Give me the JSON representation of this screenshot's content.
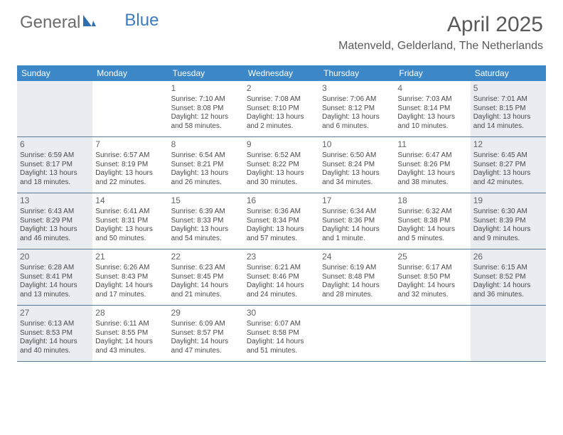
{
  "logo": {
    "part1": "General",
    "part2": "Blue"
  },
  "title": "April 2025",
  "location": "Matenveld, Gelderland, The Netherlands",
  "colors": {
    "header_bg": "#3b87c8",
    "header_text": "#ffffff",
    "shaded_bg": "#e9edf1",
    "border": "#5a7a95",
    "text": "#4a4a4a",
    "daynum": "#606468",
    "logo_gray": "#6b6b6b",
    "logo_blue": "#3b7bbf"
  },
  "dayNames": [
    "Sunday",
    "Monday",
    "Tuesday",
    "Wednesday",
    "Thursday",
    "Friday",
    "Saturday"
  ],
  "weeks": [
    [
      {
        "day": "",
        "sunrise": "",
        "sunset": "",
        "daylight": "",
        "shaded": true
      },
      {
        "day": "",
        "sunrise": "",
        "sunset": "",
        "daylight": "",
        "shaded": false
      },
      {
        "day": "1",
        "sunrise": "Sunrise: 7:10 AM",
        "sunset": "Sunset: 8:08 PM",
        "daylight": "Daylight: 12 hours and 58 minutes.",
        "shaded": false
      },
      {
        "day": "2",
        "sunrise": "Sunrise: 7:08 AM",
        "sunset": "Sunset: 8:10 PM",
        "daylight": "Daylight: 13 hours and 2 minutes.",
        "shaded": false
      },
      {
        "day": "3",
        "sunrise": "Sunrise: 7:06 AM",
        "sunset": "Sunset: 8:12 PM",
        "daylight": "Daylight: 13 hours and 6 minutes.",
        "shaded": false
      },
      {
        "day": "4",
        "sunrise": "Sunrise: 7:03 AM",
        "sunset": "Sunset: 8:14 PM",
        "daylight": "Daylight: 13 hours and 10 minutes.",
        "shaded": false
      },
      {
        "day": "5",
        "sunrise": "Sunrise: 7:01 AM",
        "sunset": "Sunset: 8:15 PM",
        "daylight": "Daylight: 13 hours and 14 minutes.",
        "shaded": true
      }
    ],
    [
      {
        "day": "6",
        "sunrise": "Sunrise: 6:59 AM",
        "sunset": "Sunset: 8:17 PM",
        "daylight": "Daylight: 13 hours and 18 minutes.",
        "shaded": true
      },
      {
        "day": "7",
        "sunrise": "Sunrise: 6:57 AM",
        "sunset": "Sunset: 8:19 PM",
        "daylight": "Daylight: 13 hours and 22 minutes.",
        "shaded": false
      },
      {
        "day": "8",
        "sunrise": "Sunrise: 6:54 AM",
        "sunset": "Sunset: 8:21 PM",
        "daylight": "Daylight: 13 hours and 26 minutes.",
        "shaded": false
      },
      {
        "day": "9",
        "sunrise": "Sunrise: 6:52 AM",
        "sunset": "Sunset: 8:22 PM",
        "daylight": "Daylight: 13 hours and 30 minutes.",
        "shaded": false
      },
      {
        "day": "10",
        "sunrise": "Sunrise: 6:50 AM",
        "sunset": "Sunset: 8:24 PM",
        "daylight": "Daylight: 13 hours and 34 minutes.",
        "shaded": false
      },
      {
        "day": "11",
        "sunrise": "Sunrise: 6:47 AM",
        "sunset": "Sunset: 8:26 PM",
        "daylight": "Daylight: 13 hours and 38 minutes.",
        "shaded": false
      },
      {
        "day": "12",
        "sunrise": "Sunrise: 6:45 AM",
        "sunset": "Sunset: 8:27 PM",
        "daylight": "Daylight: 13 hours and 42 minutes.",
        "shaded": true
      }
    ],
    [
      {
        "day": "13",
        "sunrise": "Sunrise: 6:43 AM",
        "sunset": "Sunset: 8:29 PM",
        "daylight": "Daylight: 13 hours and 46 minutes.",
        "shaded": true
      },
      {
        "day": "14",
        "sunrise": "Sunrise: 6:41 AM",
        "sunset": "Sunset: 8:31 PM",
        "daylight": "Daylight: 13 hours and 50 minutes.",
        "shaded": false
      },
      {
        "day": "15",
        "sunrise": "Sunrise: 6:39 AM",
        "sunset": "Sunset: 8:33 PM",
        "daylight": "Daylight: 13 hours and 54 minutes.",
        "shaded": false
      },
      {
        "day": "16",
        "sunrise": "Sunrise: 6:36 AM",
        "sunset": "Sunset: 8:34 PM",
        "daylight": "Daylight: 13 hours and 57 minutes.",
        "shaded": false
      },
      {
        "day": "17",
        "sunrise": "Sunrise: 6:34 AM",
        "sunset": "Sunset: 8:36 PM",
        "daylight": "Daylight: 14 hours and 1 minute.",
        "shaded": false
      },
      {
        "day": "18",
        "sunrise": "Sunrise: 6:32 AM",
        "sunset": "Sunset: 8:38 PM",
        "daylight": "Daylight: 14 hours and 5 minutes.",
        "shaded": false
      },
      {
        "day": "19",
        "sunrise": "Sunrise: 6:30 AM",
        "sunset": "Sunset: 8:39 PM",
        "daylight": "Daylight: 14 hours and 9 minutes.",
        "shaded": true
      }
    ],
    [
      {
        "day": "20",
        "sunrise": "Sunrise: 6:28 AM",
        "sunset": "Sunset: 8:41 PM",
        "daylight": "Daylight: 14 hours and 13 minutes.",
        "shaded": true
      },
      {
        "day": "21",
        "sunrise": "Sunrise: 6:26 AM",
        "sunset": "Sunset: 8:43 PM",
        "daylight": "Daylight: 14 hours and 17 minutes.",
        "shaded": false
      },
      {
        "day": "22",
        "sunrise": "Sunrise: 6:23 AM",
        "sunset": "Sunset: 8:45 PM",
        "daylight": "Daylight: 14 hours and 21 minutes.",
        "shaded": false
      },
      {
        "day": "23",
        "sunrise": "Sunrise: 6:21 AM",
        "sunset": "Sunset: 8:46 PM",
        "daylight": "Daylight: 14 hours and 24 minutes.",
        "shaded": false
      },
      {
        "day": "24",
        "sunrise": "Sunrise: 6:19 AM",
        "sunset": "Sunset: 8:48 PM",
        "daylight": "Daylight: 14 hours and 28 minutes.",
        "shaded": false
      },
      {
        "day": "25",
        "sunrise": "Sunrise: 6:17 AM",
        "sunset": "Sunset: 8:50 PM",
        "daylight": "Daylight: 14 hours and 32 minutes.",
        "shaded": false
      },
      {
        "day": "26",
        "sunrise": "Sunrise: 6:15 AM",
        "sunset": "Sunset: 8:52 PM",
        "daylight": "Daylight: 14 hours and 36 minutes.",
        "shaded": true
      }
    ],
    [
      {
        "day": "27",
        "sunrise": "Sunrise: 6:13 AM",
        "sunset": "Sunset: 8:53 PM",
        "daylight": "Daylight: 14 hours and 40 minutes.",
        "shaded": true
      },
      {
        "day": "28",
        "sunrise": "Sunrise: 6:11 AM",
        "sunset": "Sunset: 8:55 PM",
        "daylight": "Daylight: 14 hours and 43 minutes.",
        "shaded": false
      },
      {
        "day": "29",
        "sunrise": "Sunrise: 6:09 AM",
        "sunset": "Sunset: 8:57 PM",
        "daylight": "Daylight: 14 hours and 47 minutes.",
        "shaded": false
      },
      {
        "day": "30",
        "sunrise": "Sunrise: 6:07 AM",
        "sunset": "Sunset: 8:58 PM",
        "daylight": "Daylight: 14 hours and 51 minutes.",
        "shaded": false
      },
      {
        "day": "",
        "sunrise": "",
        "sunset": "",
        "daylight": "",
        "shaded": false
      },
      {
        "day": "",
        "sunrise": "",
        "sunset": "",
        "daylight": "",
        "shaded": false
      },
      {
        "day": "",
        "sunrise": "",
        "sunset": "",
        "daylight": "",
        "shaded": true
      }
    ]
  ]
}
